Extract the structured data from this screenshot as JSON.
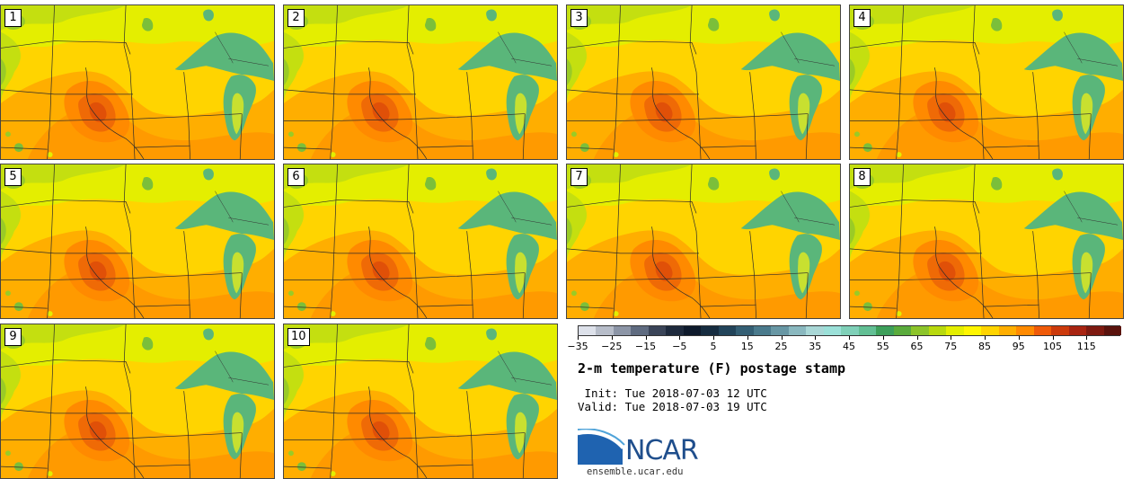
{
  "panels": [
    {
      "label": "1"
    },
    {
      "label": "2"
    },
    {
      "label": "3"
    },
    {
      "label": "4"
    },
    {
      "label": "5"
    },
    {
      "label": "6"
    },
    {
      "label": "7"
    },
    {
      "label": "8"
    },
    {
      "label": "9"
    },
    {
      "label": "10"
    }
  ],
  "colorbar": {
    "min": -35,
    "max": 120,
    "step": 5,
    "tick_labels": [
      "−35",
      "−25",
      "−15",
      "−5",
      "5",
      "15",
      "25",
      "35",
      "45",
      "55",
      "65",
      "75",
      "85",
      "95",
      "105",
      "115"
    ],
    "tick_values": [
      -35,
      -25,
      -15,
      -5,
      5,
      15,
      25,
      35,
      45,
      55,
      65,
      75,
      85,
      95,
      105,
      115
    ],
    "colors": [
      "#dde1ea",
      "#b7bdc9",
      "#8c95a6",
      "#5f6b80",
      "#3a4458",
      "#1e2a3d",
      "#0e1a2c",
      "#162c40",
      "#22445a",
      "#345f74",
      "#4a7a8c",
      "#6897a4",
      "#8ab8bf",
      "#a9d7d6",
      "#9be0d8",
      "#7fd0b8",
      "#62bf94",
      "#3d9f5a",
      "#5aab3c",
      "#8cc42a",
      "#b8d90e",
      "#e4ee00",
      "#fff500",
      "#ffd400",
      "#ffae00",
      "#ff8a00",
      "#ef5a08",
      "#cc3a0c",
      "#a82411",
      "#7e1a10",
      "#5a130d"
    ]
  },
  "title": "2-m temperature (F) postage stamp",
  "init_text": " Init: Tue 2018-07-03 12 UTC",
  "valid_text": "Valid: Tue 2018-07-03 19 UTC",
  "logo": {
    "text": "NCAR",
    "url": "ensemble.ucar.edu"
  },
  "colors": {
    "lake": "#5ab67a",
    "hot": "#e85e00",
    "warm": "#ff9a00",
    "mild": "#ffd400",
    "cool": "#e4ee00",
    "green": "#a5d21a"
  }
}
